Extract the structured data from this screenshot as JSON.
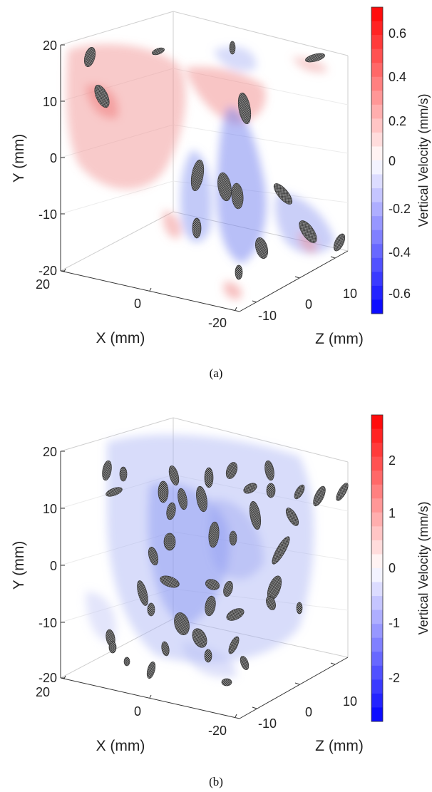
{
  "figure": {
    "panels": [
      {
        "caption": "(a)",
        "x_axis_label": "X (mm)",
        "y_axis_label": "Y (mm)",
        "z_axis_label": "Z (mm)",
        "y_ticks": [
          "20",
          "10",
          "0",
          "-10",
          "-20"
        ],
        "x_ticks": [
          "20",
          "0",
          "-20"
        ],
        "z_ticks": [
          "-10",
          "0",
          "10"
        ],
        "colorbar": {
          "label": "Vertical Velocity (mm/s)",
          "ticks": [
            "0.6",
            "0.4",
            "0.2",
            "0",
            "-0.2",
            "-0.4",
            "-0.6"
          ],
          "range": [
            -0.7,
            0.7
          ],
          "colormap": "blue-white-red",
          "colors": {
            "negative": "#0000ff",
            "zero": "#ffffff",
            "positive": "#ff0000"
          }
        },
        "dominant_field": "mixed red (upper left) and blue (center/right)"
      },
      {
        "caption": "(b)",
        "x_axis_label": "X (mm)",
        "y_axis_label": "Y (mm)",
        "z_axis_label": "Z (mm)",
        "y_ticks": [
          "20",
          "10",
          "0",
          "-10",
          "-20"
        ],
        "x_ticks": [
          "20",
          "0",
          "-20"
        ],
        "z_ticks": [
          "-10",
          "0",
          "10"
        ],
        "colorbar": {
          "label": "Vertical Velocity (mm/s)",
          "ticks": [
            "2",
            "1",
            "0",
            "-1",
            "-2"
          ],
          "range": [
            -2.8,
            2.8
          ],
          "colormap": "blue-white-red",
          "colors": {
            "negative": "#0000ff",
            "zero": "#ffffff",
            "positive": "#ff0000"
          }
        },
        "dominant_field": "mostly light blue"
      }
    ]
  }
}
